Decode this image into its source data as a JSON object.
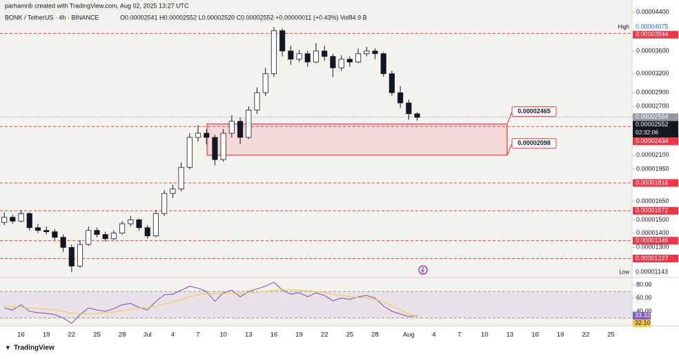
{
  "header": {
    "credit": "parhamnb created with TradingView.com, Aug 02, 2025 13:27 UTC",
    "symbol": "BONK / TetherUS · 4h · BINANCE",
    "ohlc": "O0.00002541 H0.00002552 L0.00002520 C0.00002552 +0.00000011 (+0.43%) Vol84.9 B"
  },
  "footer": {
    "brand": "TradingView"
  },
  "chart_data": [
    {
      "type": "candlestick",
      "log_scale": true,
      "categories": [
        null,
        null,
        "16",
        null,
        null,
        "19",
        null,
        null,
        "22",
        null,
        null,
        "25",
        null,
        null,
        "28",
        null,
        null,
        "Jul",
        null,
        null,
        "4",
        null,
        null,
        "7",
        null,
        null,
        "10",
        null,
        null,
        "13",
        null,
        null,
        "16",
        null,
        null,
        "19",
        null,
        null,
        "22",
        null,
        null,
        "25",
        null,
        null,
        "28",
        null,
        null,
        null,
        "Aug",
        null,
        null,
        "4",
        null,
        null,
        "7",
        null,
        null,
        "10",
        null,
        null,
        "13",
        null,
        null,
        "16",
        null,
        null,
        "19",
        null,
        null,
        "22",
        null,
        null,
        "25",
        null,
        null
      ],
      "open": [
        1.48e-05,
        1.52e-05,
        1.49e-05,
        1.55e-05,
        1.44e-05,
        1.42e-05,
        1.41e-05,
        1.37e-05,
        1.3e-05,
        1.18e-05,
        1.32e-05,
        1.42e-05,
        1.39e-05,
        1.36e-05,
        1.4e-05,
        1.47e-05,
        1.5e-05,
        1.44e-05,
        1.38e-05,
        1.55e-05,
        1.72e-05,
        1.76e-05,
        1.97e-05,
        2.3e-05,
        2.35e-05,
        2.3e-05,
        2.05e-05,
        2.35e-05,
        2.5e-05,
        2.3e-05,
        2.65e-05,
        2.9e-05,
        3.2e-05,
        4e-05,
        3.6e-05,
        3.45e-05,
        3.55e-05,
        3.4e-05,
        3.6e-05,
        3.5e-05,
        3.3e-05,
        3.45e-05,
        3.4e-05,
        3.55e-05,
        3.6e-05,
        3.55e-05,
        3.2e-05,
        2.9e-05,
        2.75e-05,
        2.6e-05,
        null,
        null,
        null,
        null,
        null,
        null,
        null,
        null,
        null,
        null,
        null,
        null,
        null,
        null,
        null,
        null,
        null,
        null,
        null,
        null,
        null,
        null,
        null,
        null,
        null
      ],
      "high": [
        1.56e-05,
        1.54e-05,
        1.58e-05,
        1.56e-05,
        1.47e-05,
        1.45e-05,
        1.43e-05,
        1.39e-05,
        1.32e-05,
        1.35e-05,
        1.45e-05,
        1.44e-05,
        1.41e-05,
        1.42e-05,
        1.49e-05,
        1.53e-05,
        1.51e-05,
        1.46e-05,
        1.58e-05,
        1.75e-05,
        1.8e-05,
        2.02e-05,
        2.35e-05,
        2.45e-05,
        2.4e-05,
        2.33e-05,
        2.4e-05,
        2.58e-05,
        2.55e-05,
        2.7e-05,
        2.98e-05,
        3.3e-05,
        4.075e-05,
        4.05e-05,
        3.7e-05,
        3.62e-05,
        3.6e-05,
        3.75e-05,
        3.7e-05,
        3.55e-05,
        3.52e-05,
        3.5e-05,
        3.65e-05,
        3.68e-05,
        3.65e-05,
        3.58e-05,
        3.25e-05,
        3e-05,
        2.8e-05,
        2.62e-05,
        null,
        null,
        null,
        null,
        null,
        null,
        null,
        null,
        null,
        null,
        null,
        null,
        null,
        null,
        null,
        null,
        null,
        null,
        null,
        null,
        null,
        null,
        null,
        null,
        null
      ],
      "low": [
        1.46e-05,
        1.47e-05,
        1.48e-05,
        1.42e-05,
        1.4e-05,
        1.39e-05,
        1.35e-05,
        1.27e-05,
        1.143e-05,
        1.17e-05,
        1.31e-05,
        1.37e-05,
        1.34e-05,
        1.35e-05,
        1.39e-05,
        1.45e-05,
        1.42e-05,
        1.36e-05,
        1.37e-05,
        1.53e-05,
        1.68e-05,
        1.74e-05,
        1.95e-05,
        2.25e-05,
        2.22e-05,
        1.99e-05,
        2.03e-05,
        2.3e-05,
        2.22e-05,
        2.28e-05,
        2.6e-05,
        2.85e-05,
        3.15e-05,
        3.5e-05,
        3.35e-05,
        3.4e-05,
        3.32e-05,
        3.38e-05,
        3.42e-05,
        3.15e-05,
        3.25e-05,
        3.32e-05,
        3.38e-05,
        3.5e-05,
        3.45e-05,
        3.15e-05,
        2.85e-05,
        2.68e-05,
        2.52e-05,
        2.51e-05,
        null,
        null,
        null,
        null,
        null,
        null,
        null,
        null,
        null,
        null,
        null,
        null,
        null,
        null,
        null,
        null,
        null,
        null,
        null,
        null,
        null,
        null,
        null,
        null,
        null
      ],
      "close": [
        1.52e-05,
        1.49e-05,
        1.55e-05,
        1.44e-05,
        1.42e-05,
        1.41e-05,
        1.37e-05,
        1.3e-05,
        1.18e-05,
        1.32e-05,
        1.42e-05,
        1.39e-05,
        1.36e-05,
        1.4e-05,
        1.47e-05,
        1.5e-05,
        1.44e-05,
        1.38e-05,
        1.55e-05,
        1.72e-05,
        1.76e-05,
        1.97e-05,
        2.3e-05,
        2.35e-05,
        2.3e-05,
        2.05e-05,
        2.35e-05,
        2.5e-05,
        2.3e-05,
        2.65e-05,
        2.9e-05,
        3.2e-05,
        4e-05,
        3.6e-05,
        3.45e-05,
        3.55e-05,
        3.4e-05,
        3.6e-05,
        3.5e-05,
        3.3e-05,
        3.45e-05,
        3.4e-05,
        3.55e-05,
        3.6e-05,
        3.55e-05,
        3.2e-05,
        2.9e-05,
        2.75e-05,
        2.6e-05,
        2.552e-05,
        null,
        null,
        null,
        null,
        null,
        null,
        null,
        null,
        null,
        null,
        null,
        null,
        null,
        null,
        null,
        null,
        null,
        null,
        null,
        null,
        null,
        null,
        null,
        null,
        null
      ],
      "up_color": "#ffffff",
      "down_color": "#131722",
      "ylim": [
        1.12e-05,
        4.69e-05
      ],
      "yticks": [
        {
          "value": 4.4e-05,
          "label": "0.00004400"
        },
        {
          "value": 3.6e-05,
          "label": "0.00003600"
        },
        {
          "value": 3.2e-05,
          "label": "0.00003200"
        },
        {
          "value": 2.9e-05,
          "label": "0.00002900"
        },
        {
          "value": 2.7e-05,
          "label": "0.00002700"
        },
        {
          "value": 2.1e-05,
          "label": "0.00002100"
        },
        {
          "value": 1.95e-05,
          "label": "0.00001950"
        },
        {
          "value": 1.65e-05,
          "label": "0.00001650"
        },
        {
          "value": 1.5e-05,
          "label": "0.00001500"
        },
        {
          "value": 1.4e-05,
          "label": "0.00001400"
        },
        {
          "value": 1.3e-05,
          "label": "0.00001300"
        }
      ],
      "levels": [
        {
          "value": 3.944e-05,
          "label": "0.00003944"
        },
        {
          "value": 2.434e-05,
          "label": "0.00002434"
        },
        {
          "value": 1.816e-05,
          "label": "0.00001816"
        },
        {
          "value": 1.572e-05,
          "label": "0.00001572"
        },
        {
          "value": 1.346e-05,
          "label": "0.00001346"
        },
        {
          "value": 1.227e-05,
          "label": "0.00001227"
        }
      ],
      "level_color": "#f23645",
      "zone": {
        "top": {
          "value": 2.465e-05,
          "label": "0.00002465"
        },
        "bottom": {
          "value": 2.098e-05,
          "label": "0.00002098"
        }
      },
      "high_mark": {
        "name": "High",
        "value": 4.075e-05,
        "label": "0.00004075"
      },
      "low_mark": {
        "name": "Low",
        "value": 1.143e-05,
        "label": "0.00001143"
      },
      "reference_price": {
        "value": 2.554e-05,
        "label": "0.00002554"
      },
      "last_price": {
        "value": 2.552e-05,
        "label": "0.00002552",
        "countdown": "02:32:06"
      }
    },
    {
      "type": "line",
      "ylim": [
        18,
        88
      ],
      "yticks": [
        {
          "value": 80,
          "label": "80.00"
        },
        {
          "value": 60,
          "label": "60.00"
        },
        {
          "value": 40,
          "label": "40.00"
        }
      ],
      "band": [
        30,
        70
      ],
      "series": [
        {
          "color": "#7e57c2",
          "values": [
            45,
            42,
            50,
            40,
            38,
            37,
            35,
            30,
            22,
            35,
            45,
            42,
            40,
            44,
            50,
            52,
            46,
            42,
            55,
            65,
            66,
            72,
            78,
            75,
            70,
            55,
            68,
            72,
            62,
            70,
            74,
            78,
            84,
            72,
            66,
            68,
            62,
            68,
            64,
            56,
            60,
            58,
            62,
            64,
            60,
            48,
            40,
            36,
            32,
            33.32
          ]
        },
        {
          "color": "#f7c948",
          "values": [
            48,
            47,
            46,
            45,
            44,
            43,
            42,
            40,
            37,
            36,
            36,
            37,
            38,
            39,
            41,
            43,
            45,
            46,
            48,
            51,
            54,
            58,
            62,
            65,
            67,
            67,
            67,
            67,
            67,
            68,
            69,
            70,
            72,
            73,
            73,
            72,
            71,
            70,
            69,
            66,
            64,
            62,
            61,
            60,
            58,
            54,
            48,
            42,
            36,
            32.1
          ],
          "value_labels": [
            null,
            null,
            null,
            null,
            null,
            null,
            null,
            null,
            null,
            null,
            null,
            null,
            null,
            null,
            null,
            null,
            null,
            null,
            null,
            null,
            null,
            null,
            null,
            null,
            null,
            null,
            null,
            null,
            null,
            null,
            null,
            null,
            null,
            null,
            null,
            null,
            null,
            null,
            null,
            null,
            null,
            null,
            null,
            null,
            null,
            null,
            null,
            null,
            null,
            "32.10"
          ]
        }
      ]
    }
  ]
}
